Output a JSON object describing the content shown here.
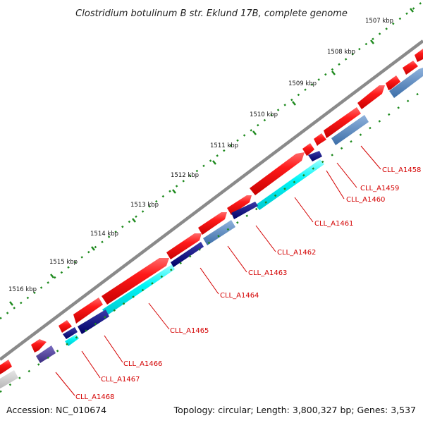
{
  "title": "Clostridium botulinum B str. Eklund 17B, complete genome",
  "accession": "Accession: NC_010674",
  "summary": "Topology: circular; Length: 3,800,327 bp; Genes: 3,537",
  "ticks": [
    "1507 kbp",
    "1508 kbp",
    "1509 kbp",
    "1510 kbp",
    "1511 kbp",
    "1512 kbp",
    "1513 kbp",
    "1514 kbp",
    "1515 kbp",
    "1516 kbp"
  ],
  "gene_labels": [
    "CLL_A1458",
    "CLL_A1459",
    "CLL_A1460",
    "CLL_A1461",
    "CLL_A1462",
    "CLL_A1463",
    "CLL_A1464",
    "CLL_A1465",
    "CLL_A1466",
    "CLL_A1467",
    "CLL_A1468"
  ],
  "colors": {
    "backbone": "#808080",
    "cds": "#ff0000",
    "label_text": "#d40000",
    "tick_green": "#1e8a1e",
    "feature_cyan": "#00ffff",
    "feature_navy": "#000080",
    "feature_steelblue": "#4f81bd",
    "feature_purple": "#4b3a8c",
    "feature_grey": "#c8c8c8"
  }
}
